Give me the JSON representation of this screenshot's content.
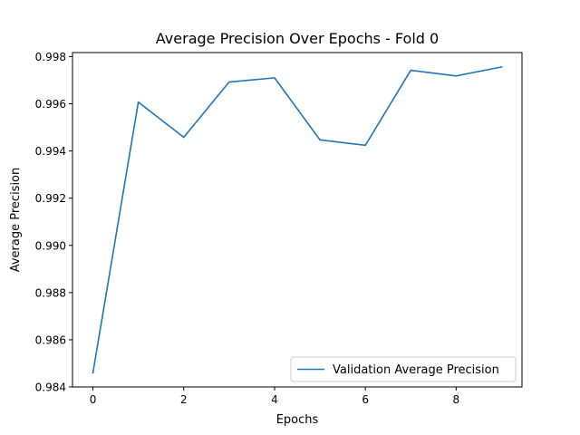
{
  "chart_data": {
    "type": "line",
    "title": "Average Precision Over Epochs - Fold 0",
    "xlabel": "Epochs",
    "ylabel": "Average Precision",
    "xlim": [
      -0.45,
      9.45
    ],
    "ylim": [
      0.984,
      0.99817
    ],
    "xticks": [
      0,
      2,
      4,
      6,
      8
    ],
    "xtick_labels": [
      "0",
      "2",
      "4",
      "6",
      "8"
    ],
    "yticks": [
      0.984,
      0.986,
      0.988,
      0.99,
      0.992,
      0.994,
      0.996,
      0.998
    ],
    "ytick_labels": [
      "0.984",
      "0.986",
      "0.988",
      "0.990",
      "0.992",
      "0.994",
      "0.996",
      "0.998"
    ],
    "grid": false,
    "legend_position": "lower-right",
    "series": [
      {
        "name": "Validation Average Precision",
        "color": "#1f77b4",
        "x": [
          0,
          1,
          2,
          3,
          4,
          5,
          6,
          7,
          8,
          9
        ],
        "y": [
          0.9846,
          0.99607,
          0.99458,
          0.99692,
          0.9971,
          0.99447,
          0.99424,
          0.99742,
          0.99718,
          0.99756
        ]
      }
    ]
  }
}
